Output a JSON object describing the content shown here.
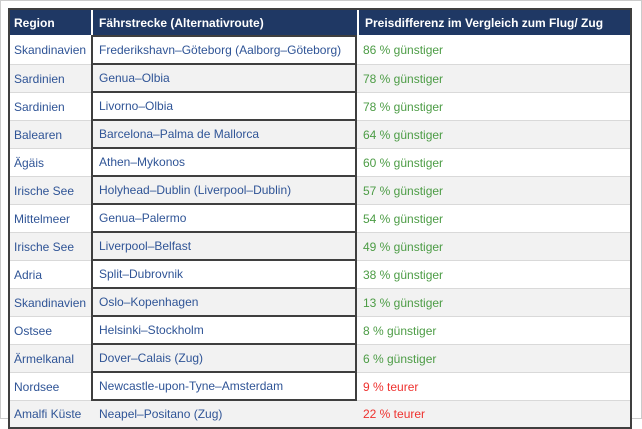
{
  "colors": {
    "header_bg": "#1F3864",
    "text_blue": "#2F5496",
    "positive_green": "#4C9C45",
    "negative_red": "#EE312E",
    "row_alt": "#F2F2F2",
    "row_separator": "#D9D9D9",
    "border_dark": "#3F3F3F"
  },
  "table": {
    "headers": [
      "Region",
      "Fährstrecke (Alternativroute)",
      "Preisdifferenz im Vergleich zum Flug/ Zug"
    ],
    "rows": [
      {
        "region": "Skandinavien",
        "route": "Frederikshavn–Göteborg (Aalborg–Göteborg)",
        "diff": "86 % günstiger",
        "tone": "positive"
      },
      {
        "region": "Sardinien",
        "route": "Genua–Olbia",
        "diff": "78 % günstiger",
        "tone": "positive"
      },
      {
        "region": "Sardinien",
        "route": "Livorno–Olbia",
        "diff": "78 % günstiger",
        "tone": "positive"
      },
      {
        "region": "Balearen",
        "route": "Barcelona–Palma de Mallorca",
        "diff": "64 % günstiger",
        "tone": "positive"
      },
      {
        "region": "Ägäis",
        "route": "Athen–Mykonos",
        "diff": "60 % günstiger",
        "tone": "positive"
      },
      {
        "region": "Irische See",
        "route": "Holyhead–Dublin (Liverpool–Dublin)",
        "diff": "57 % günstiger",
        "tone": "positive"
      },
      {
        "region": "Mittelmeer",
        "route": "Genua–Palermo",
        "diff": "54 % günstiger",
        "tone": "positive"
      },
      {
        "region": "Irische See",
        "route": "Liverpool–Belfast",
        "diff": "49 % günstiger",
        "tone": "positive"
      },
      {
        "region": "Adria",
        "route": "Split–Dubrovnik",
        "diff": "38 % günstiger",
        "tone": "positive"
      },
      {
        "region": "Skandinavien",
        "route": "Oslo–Kopenhagen",
        "diff": "13 % günstiger",
        "tone": "positive"
      },
      {
        "region": "Ostsee",
        "route": "Helsinki–Stockholm",
        "diff": "8 % günstiger",
        "tone": "positive"
      },
      {
        "region": "Ärmelkanal",
        "route": "Dover–Calais (Zug)",
        "diff": "6 % günstiger",
        "tone": "positive"
      },
      {
        "region": "Nordsee",
        "route": "Newcastle-upon-Tyne–Amsterdam",
        "diff": "9 % teurer",
        "tone": "negative"
      },
      {
        "region": "Amalfi Küste",
        "route": "Neapel–Positano (Zug)",
        "diff": "22 % teurer",
        "tone": "negative"
      }
    ]
  }
}
